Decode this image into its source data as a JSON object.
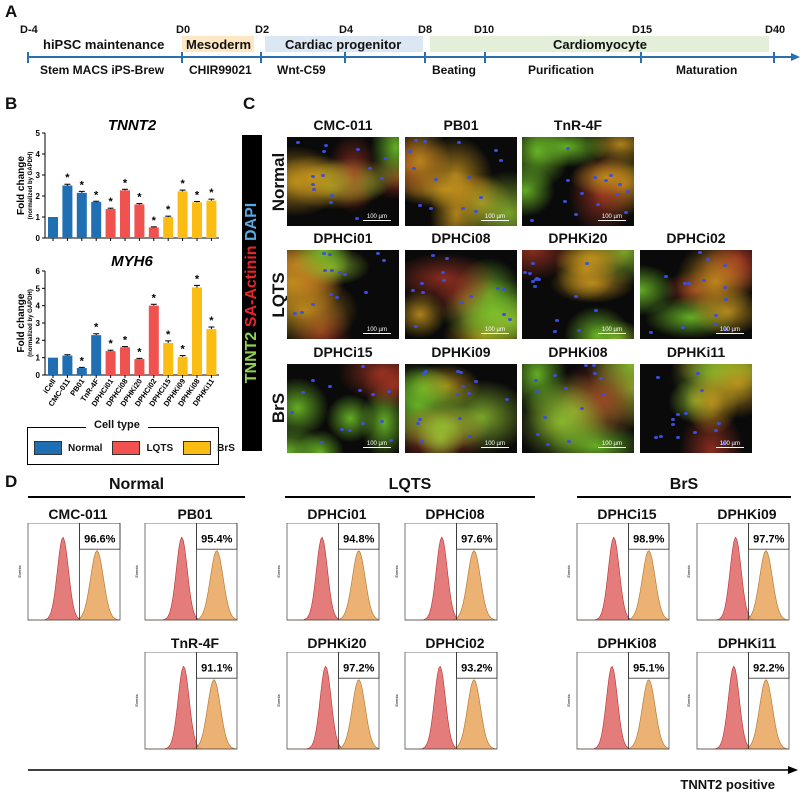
{
  "panel_labels": {
    "a": "A",
    "b": "B",
    "c": "C",
    "d": "D"
  },
  "timeline": {
    "days": [
      "D-4",
      "D0",
      "D2",
      "D4",
      "D8",
      "D10",
      "D15",
      "D40"
    ],
    "stages": [
      "hiPSC maintenance",
      "Mesoderm",
      "Cardiac progenitor",
      "Cardiomyocyte"
    ],
    "conditions": [
      "Stem MACS iPS-Brew",
      "CHIR99021",
      "Wnt-C59",
      "Beating",
      "Purification",
      "Maturation"
    ],
    "colors": {
      "line": "#2a6fb0",
      "mesoderm": "#fde8c3",
      "progenitor": "#dce7f4",
      "cardiomyocyte": "#e3efd8"
    }
  },
  "chart_data": [
    {
      "type": "bar",
      "title": "TNNT2",
      "ylabel": "Fold change",
      "ylabel_sub": "(normalized by GAPDH)",
      "ylim": [
        0,
        5
      ],
      "yticks": [
        "0",
        "1",
        "2",
        "3",
        "4",
        "5"
      ],
      "categories": [
        "iCell",
        "CMC-011",
        "PB01",
        "TnR-4F",
        "DPHCi01",
        "DPHCi08",
        "DPHKi20",
        "DPHCi02",
        "DPHCi15",
        "DPHKi09",
        "DPHKi08",
        "DPHKi11"
      ],
      "groups": [
        "Normal",
        "Normal",
        "Normal",
        "Normal",
        "LQTS",
        "LQTS",
        "LQTS",
        "LQTS",
        "BrS",
        "BrS",
        "BrS",
        "BrS"
      ],
      "values": [
        1.0,
        2.5,
        2.15,
        1.72,
        1.38,
        2.27,
        1.6,
        0.5,
        1.0,
        2.22,
        1.7,
        1.78
      ],
      "errors": [
        0,
        0.06,
        0.07,
        0.03,
        0.04,
        0.05,
        0.04,
        0.03,
        0.04,
        0.06,
        0.04,
        0.07
      ],
      "significant": [
        false,
        true,
        true,
        true,
        true,
        true,
        true,
        true,
        true,
        true,
        true,
        true
      ],
      "sig_mark": "*"
    },
    {
      "type": "bar",
      "title": "MYH6",
      "ylabel": "Fold change",
      "ylabel_sub": "(normalized by GAPDH)",
      "ylim": [
        0,
        6
      ],
      "yticks": [
        "0",
        "1",
        "2",
        "3",
        "4",
        "5",
        "6"
      ],
      "categories": [
        "iCell",
        "CMC-011",
        "PB01",
        "TnR-4F",
        "DPHCi01",
        "DPHCi08",
        "DPHKi20",
        "DPHCi02",
        "DPHCi15",
        "DPHKi09",
        "DPHKi08",
        "DPHKi11"
      ],
      "groups": [
        "Normal",
        "Normal",
        "Normal",
        "Normal",
        "LQTS",
        "LQTS",
        "LQTS",
        "LQTS",
        "BrS",
        "BrS",
        "BrS",
        "BrS"
      ],
      "values": [
        1.0,
        1.12,
        0.4,
        2.3,
        1.38,
        1.6,
        0.92,
        4.0,
        1.85,
        1.05,
        5.05,
        2.65
      ],
      "errors": [
        0,
        0.05,
        0.04,
        0.08,
        0.05,
        0.04,
        0.04,
        0.08,
        0.12,
        0.07,
        0.12,
        0.12
      ],
      "significant": [
        false,
        false,
        true,
        true,
        true,
        true,
        true,
        true,
        true,
        true,
        true,
        true
      ],
      "sig_mark": "*"
    }
  ],
  "legend": {
    "title": "Cell type",
    "items": [
      {
        "label": "Normal",
        "color": "#1f6fb2"
      },
      {
        "label": "LQTS",
        "color": "#f0524f"
      },
      {
        "label": "BrS",
        "color": "#fbbd14"
      }
    ]
  },
  "immuno": {
    "stain_labels": [
      {
        "text": "TNNT2",
        "color": "#8fd14f"
      },
      {
        "text": " SA-Actinin ",
        "color": "#e8242a"
      },
      {
        "text": "DAPI",
        "color": "#5aa8e0"
      }
    ],
    "rows": [
      {
        "label": "Normal",
        "images": [
          "CMC-011",
          "PB01",
          "TnR-4F"
        ]
      },
      {
        "label": "LQTS",
        "images": [
          "DPHCi01",
          "DPHCi08",
          "DPHKi20",
          "DPHCi02"
        ]
      },
      {
        "label": "BrS",
        "images": [
          "DPHCi15",
          "DPHKi09",
          "DPHKi08",
          "DPHKi11"
        ]
      }
    ],
    "scale_bar": "100 µm"
  },
  "flow": {
    "groups": [
      "Normal",
      "LQTS",
      "BrS"
    ],
    "y_axis_label": "Events",
    "x_axis_label": "TNNT2 positive",
    "plots": [
      {
        "name": "CMC-011",
        "percent": "96.6%"
      },
      {
        "name": "PB01",
        "percent": "95.4%"
      },
      {
        "name": "TnR-4F",
        "percent": "91.1%"
      },
      {
        "name": "DPHCi01",
        "percent": "94.8%"
      },
      {
        "name": "DPHCi08",
        "percent": "97.6%"
      },
      {
        "name": "DPHKi20",
        "percent": "97.2%"
      },
      {
        "name": "DPHCi02",
        "percent": "93.2%"
      },
      {
        "name": "DPHCi15",
        "percent": "98.9%"
      },
      {
        "name": "DPHKi09",
        "percent": "97.7%"
      },
      {
        "name": "DPHKi08",
        "percent": "95.1%"
      },
      {
        "name": "DPHKi11",
        "percent": "92.2%"
      }
    ]
  }
}
